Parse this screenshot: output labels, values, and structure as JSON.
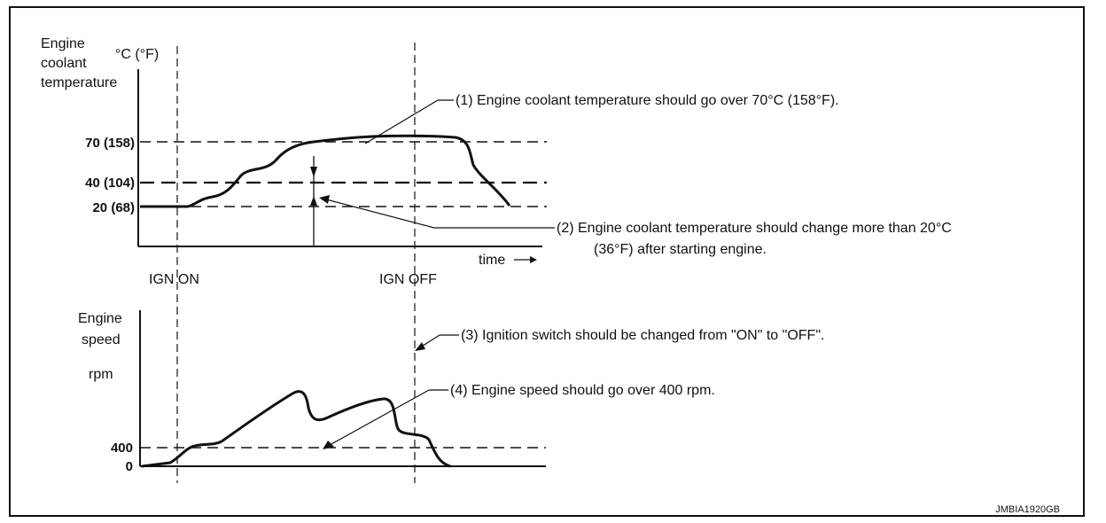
{
  "figure": {
    "code": "JMBIA1920GB",
    "colors": {
      "line": "#111111",
      "background": "#ffffff"
    }
  },
  "chart_data": [
    {
      "type": "line",
      "title": "",
      "ylabel_lines": [
        "Engine",
        "coolant",
        "temperature"
      ],
      "yunit": "°C (°F)",
      "xlabel": "time",
      "events": [
        "IGN ON",
        "IGN OFF"
      ],
      "yticks": [
        "70 (158)",
        "40 (104)",
        "20 (68)"
      ],
      "ytick_values": [
        70,
        40,
        20
      ],
      "ylim": [
        0,
        100
      ],
      "notes": [
        "(1)  Engine coolant temperature should go over 70°C (158°F).",
        "(2)  Engine coolant temperature should change more than 20°C",
        "(36°F) after starting engine."
      ],
      "series": [
        {
          "values_desc": "coolant temperature",
          "x": [
            0,
            5,
            10,
            15,
            20,
            25,
            30,
            35,
            40,
            45,
            50,
            55,
            60,
            65,
            70,
            75,
            80,
            85,
            90,
            95,
            100,
            105,
            110,
            115,
            120,
            125
          ],
          "y": [
            20,
            20,
            20,
            21,
            25,
            28,
            38,
            46,
            52,
            60,
            68,
            71,
            72,
            73,
            74,
            74,
            74,
            74,
            73,
            70,
            50,
            40,
            30,
            22,
            20,
            20
          ]
        }
      ]
    },
    {
      "type": "line",
      "title": "",
      "ylabel_lines": [
        "Engine",
        "speed"
      ],
      "yunit": "rpm",
      "yticks": [
        "400",
        "0"
      ],
      "ytick_values": [
        400,
        0
      ],
      "ylim": [
        0,
        1800
      ],
      "notes": [
        "(3)  Ignition switch should be changed from \"ON\" to \"OFF\".",
        "(4)  Engine speed should go over 400 rpm."
      ]
    }
  ]
}
